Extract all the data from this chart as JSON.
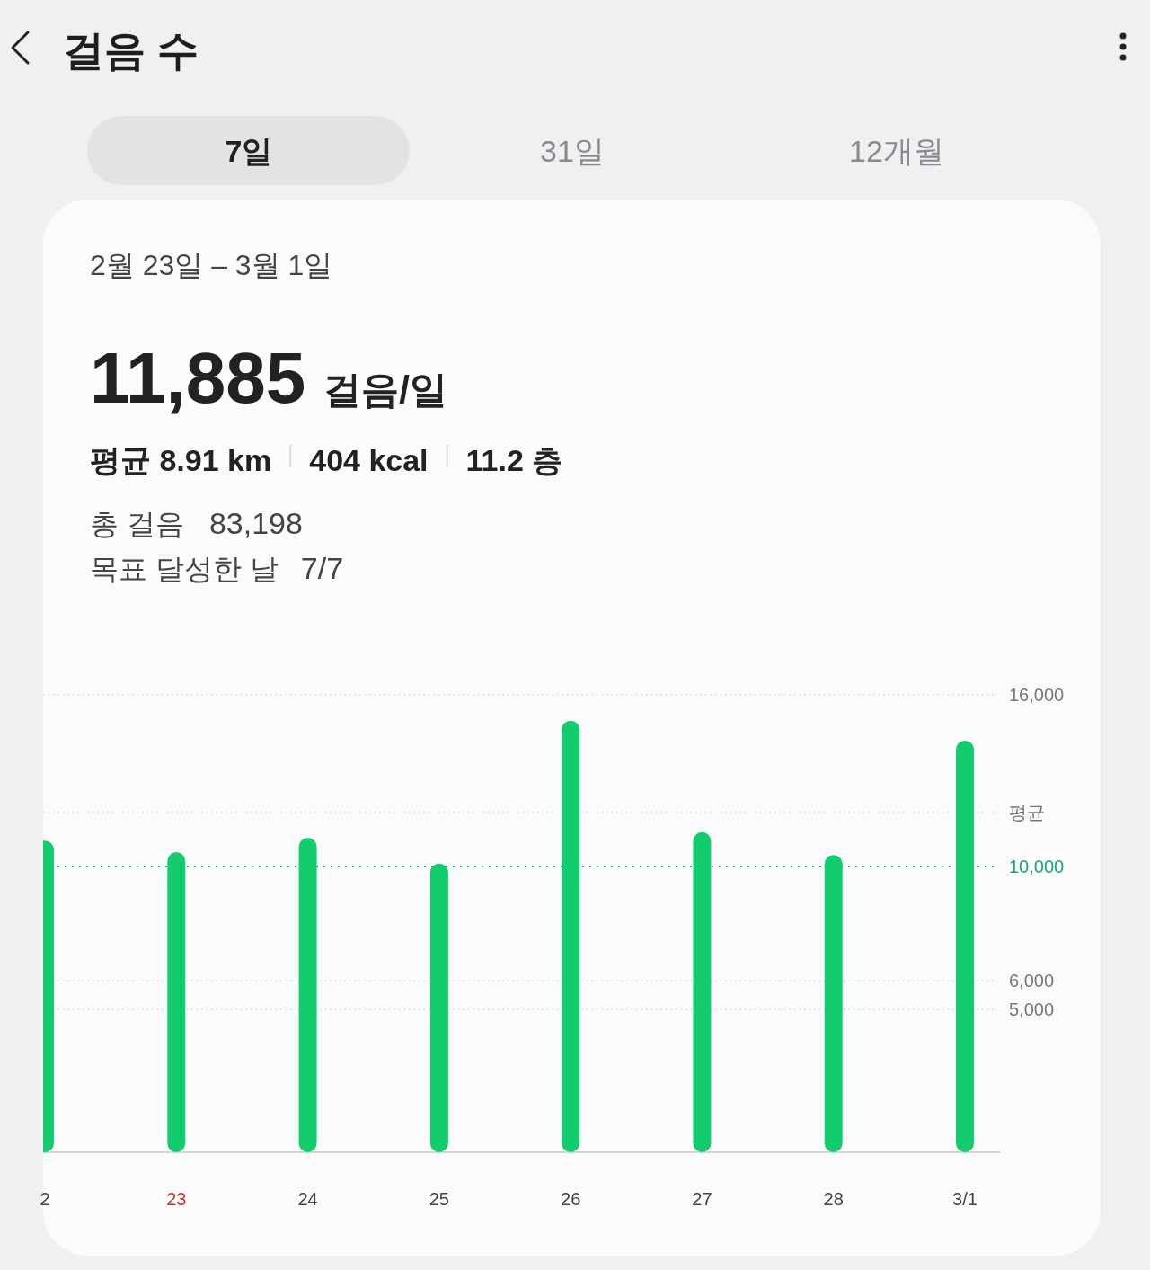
{
  "chart_data": {
    "type": "bar",
    "title": "걸음 수",
    "subtitle": "2월 23일 – 3월 1일",
    "annotations": [
      "7일",
      "31일",
      "12개월",
      "11,885",
      "걸음/일",
      "평균 8.91 km",
      "404 kcal",
      "11.2 층",
      "총 걸음",
      "83,198",
      "목표 달성한 날",
      "7/7"
    ],
    "categories": [
      "2",
      "23",
      "24",
      "25",
      "26",
      "27",
      "28",
      "3/1"
    ],
    "values": [
      10900,
      10500,
      11000,
      10100,
      15100,
      11200,
      10400,
      14400
    ],
    "color": "#13cc6d",
    "ylim": [
      0,
      16000
    ],
    "yticks": [
      {
        "value": 5000,
        "label": "5,000"
      },
      {
        "value": 6000,
        "label": "6,000"
      },
      {
        "value": 16000,
        "label": "16,000"
      }
    ],
    "grid": "y",
    "ref_lines": [
      {
        "axis": "y",
        "value": 11885,
        "label": "평균",
        "line_style": "dotted"
      },
      {
        "axis": "y",
        "value": 10000,
        "label": "10,000",
        "color": "#14a86a",
        "line_style": "dotted"
      }
    ]
  }
}
